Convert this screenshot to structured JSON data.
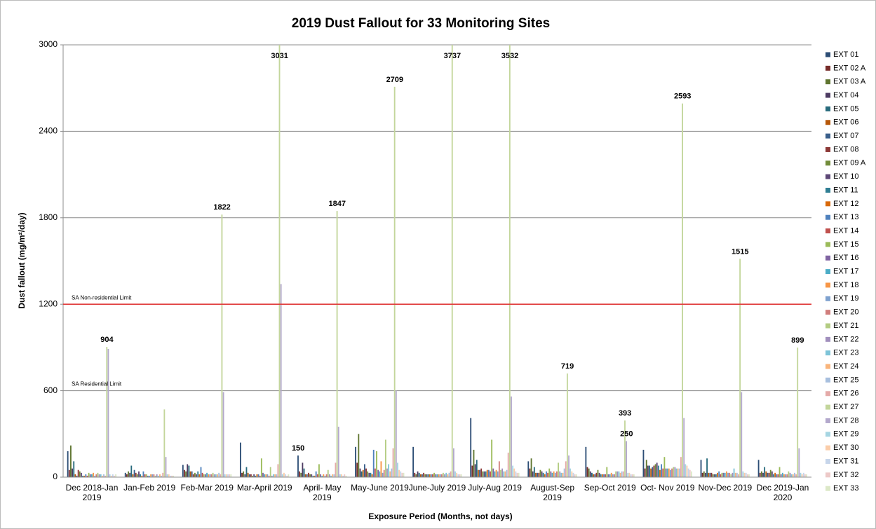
{
  "chart_data": {
    "type": "bar",
    "title": "2019 Dust Fallout for 33 Monitoring Sites",
    "x_label": "Exposure Period (Months, not days)",
    "y_label": "Dust fallout (mg/m²/day)",
    "categories": [
      "Dec 2018-Jan 2019",
      "Jan-Feb 2019",
      "Feb-Mar 2019",
      "Mar-April 2019",
      "April- May 2019",
      "May-June 2019",
      "June-July 2019",
      "July-Aug 2019",
      "August-Sep 2019",
      "Sep-Oct 2019",
      "Oct- Nov 2019",
      "Nov-Dec 2019",
      "Dec 2019-Jan 2020"
    ],
    "ylim": [
      0,
      3000
    ],
    "yticks": [
      0,
      600,
      1200,
      1800,
      2400,
      3000
    ],
    "grid": true,
    "legend": "right",
    "reference_lines": [
      {
        "value": 1200,
        "label": "SA Non-residential Limit",
        "color": "#e03a3a"
      },
      {
        "value": 600,
        "label": "SA Residential Limit"
      }
    ],
    "series": [
      {
        "name": "EXT 01",
        "color": "#2c4d75",
        "values": [
          180,
          30,
          85,
          240,
          150,
          210,
          210,
          410,
          110,
          210,
          190,
          120,
          120
        ],
        "value_labels": [
          null,
          null,
          null,
          null,
          "150",
          null,
          null,
          null,
          null,
          null,
          null,
          null,
          null
        ]
      },
      {
        "name": "EXT 02 A",
        "color": "#772c2a",
        "values": [
          50,
          20,
          50,
          30,
          40,
          100,
          30,
          80,
          60,
          70,
          60,
          30,
          30
        ]
      },
      {
        "name": "EXT 03 A",
        "color": "#5f7530",
        "values": [
          220,
          40,
          40,
          40,
          30,
          300,
          20,
          190,
          130,
          60,
          120,
          40,
          40
        ]
      },
      {
        "name": "EXT 04",
        "color": "#4d3b62",
        "values": [
          60,
          30,
          90,
          20,
          100,
          60,
          40,
          90,
          40,
          40,
          80,
          30,
          30
        ]
      },
      {
        "name": "EXT 05",
        "color": "#276a7c",
        "values": [
          110,
          80,
          80,
          70,
          60,
          40,
          30,
          120,
          70,
          30,
          80,
          130,
          70
        ]
      },
      {
        "name": "EXT 06",
        "color": "#b65708",
        "values": [
          20,
          20,
          40,
          30,
          20,
          50,
          20,
          50,
          30,
          20,
          60,
          30,
          40
        ]
      },
      {
        "name": "EXT 07",
        "color": "#3a5f8b",
        "values": [
          10,
          50,
          40,
          20,
          20,
          90,
          20,
          50,
          30,
          20,
          70,
          30,
          30
        ]
      },
      {
        "name": "EXT 08",
        "color": "#8c3836",
        "values": [
          50,
          30,
          20,
          20,
          30,
          60,
          30,
          60,
          30,
          30,
          80,
          30,
          30
        ]
      },
      {
        "name": "EXT 09 A",
        "color": "#728c3a",
        "values": [
          40,
          20,
          30,
          10,
          20,
          40,
          20,
          40,
          50,
          50,
          90,
          20,
          50
        ]
      },
      {
        "name": "EXT 10",
        "color": "#5c4776",
        "values": [
          30,
          40,
          20,
          20,
          20,
          30,
          20,
          40,
          40,
          30,
          100,
          20,
          40
        ]
      },
      {
        "name": "EXT 11",
        "color": "#2f7e93",
        "values": [
          10,
          20,
          40,
          10,
          10,
          30,
          20,
          40,
          30,
          20,
          80,
          20,
          20
        ]
      },
      {
        "name": "EXT 12",
        "color": "#d9690a",
        "values": [
          10,
          10,
          20,
          20,
          10,
          20,
          20,
          50,
          20,
          20,
          50,
          30,
          30
        ]
      },
      {
        "name": "EXT 13",
        "color": "#4f81bd",
        "values": [
          20,
          40,
          70,
          20,
          40,
          190,
          20,
          50,
          40,
          20,
          90,
          40,
          20
        ]
      },
      {
        "name": "EXT 14",
        "color": "#c0504d",
        "values": [
          10,
          20,
          30,
          10,
          20,
          60,
          20,
          40,
          30,
          20,
          60,
          20,
          20
        ]
      },
      {
        "name": "EXT 15",
        "color": "#9bbb59",
        "values": [
          30,
          20,
          20,
          130,
          90,
          180,
          30,
          260,
          60,
          70,
          140,
          30,
          70
        ]
      },
      {
        "name": "EXT 16",
        "color": "#8064a2",
        "values": [
          20,
          10,
          20,
          30,
          20,
          50,
          20,
          60,
          40,
          20,
          60,
          30,
          20
        ]
      },
      {
        "name": "EXT 17",
        "color": "#4bacc6",
        "values": [
          20,
          10,
          30,
          20,
          10,
          40,
          20,
          40,
          30,
          20,
          60,
          30,
          30
        ]
      },
      {
        "name": "EXT 18",
        "color": "#f79646",
        "values": [
          30,
          20,
          20,
          20,
          20,
          110,
          20,
          50,
          40,
          30,
          60,
          40,
          20
        ]
      },
      {
        "name": "EXT 19",
        "color": "#7ea1cf",
        "values": [
          10,
          20,
          20,
          20,
          10,
          30,
          20,
          40,
          30,
          20,
          50,
          30,
          20
        ]
      },
      {
        "name": "EXT 20",
        "color": "#d07d7b",
        "values": [
          20,
          20,
          20,
          10,
          20,
          50,
          20,
          110,
          40,
          20,
          60,
          30,
          20
        ]
      },
      {
        "name": "EXT 21",
        "color": "#b3cc82",
        "values": [
          30,
          10,
          30,
          70,
          50,
          260,
          30,
          50,
          100,
          40,
          70,
          20,
          40
        ]
      },
      {
        "name": "EXT 22",
        "color": "#a18fbd",
        "values": [
          20,
          20,
          20,
          10,
          20,
          60,
          20,
          60,
          40,
          40,
          70,
          30,
          30
        ]
      },
      {
        "name": "EXT 23",
        "color": "#7ec4d8",
        "values": [
          20,
          10,
          20,
          20,
          10,
          90,
          30,
          40,
          30,
          40,
          60,
          60,
          20
        ]
      },
      {
        "name": "EXT 24",
        "color": "#f9b47b",
        "values": [
          10,
          20,
          20,
          20,
          20,
          40,
          20,
          40,
          30,
          30,
          60,
          30,
          20
        ]
      },
      {
        "name": "EXT 25",
        "color": "#a7bfde",
        "values": [
          20,
          10,
          30,
          20,
          20,
          60,
          30,
          50,
          60,
          40,
          60,
          30,
          30
        ]
      },
      {
        "name": "EXT 26",
        "color": "#e4aaa8",
        "values": [
          10,
          30,
          20,
          90,
          100,
          200,
          40,
          170,
          110,
          40,
          140,
          20,
          20
        ]
      },
      {
        "name": "EXT 27",
        "color": "#c3d69b",
        "values": [
          904,
          470,
          1822,
          3031,
          1847,
          2709,
          3737,
          3532,
          719,
          393,
          2593,
          1515,
          899
        ],
        "value_labels": [
          "904",
          null,
          "1822",
          "3031",
          "1847",
          "2709",
          "3737",
          "3532",
          "719",
          "393",
          "2593",
          "1515",
          "899"
        ]
      },
      {
        "name": "EXT 28",
        "color": "#b3a8cc",
        "values": [
          890,
          140,
          590,
          1340,
          350,
          600,
          200,
          560,
          150,
          250,
          410,
          590,
          200
        ],
        "value_labels": [
          null,
          null,
          null,
          null,
          null,
          null,
          null,
          null,
          null,
          "250",
          null,
          null,
          null
        ]
      },
      {
        "name": "EXT 29",
        "color": "#a5d5e2",
        "values": [
          20,
          20,
          20,
          20,
          20,
          100,
          40,
          80,
          60,
          30,
          90,
          40,
          30
        ]
      },
      {
        "name": "EXT 30",
        "color": "#fbcda9",
        "values": [
          10,
          20,
          20,
          30,
          20,
          50,
          30,
          60,
          40,
          30,
          80,
          30,
          20
        ]
      },
      {
        "name": "EXT 31",
        "color": "#c6d5ea",
        "values": [
          20,
          10,
          20,
          20,
          10,
          40,
          20,
          40,
          30,
          20,
          60,
          30,
          30
        ]
      },
      {
        "name": "EXT 32",
        "color": "#edc9c8",
        "values": [
          10,
          10,
          20,
          10,
          20,
          30,
          20,
          30,
          20,
          20,
          50,
          20,
          20
        ]
      },
      {
        "name": "EXT 33",
        "color": "#dce8c7",
        "values": [
          20,
          10,
          20,
          20,
          10,
          30,
          20,
          30,
          20,
          20,
          40,
          20,
          20
        ]
      }
    ]
  }
}
